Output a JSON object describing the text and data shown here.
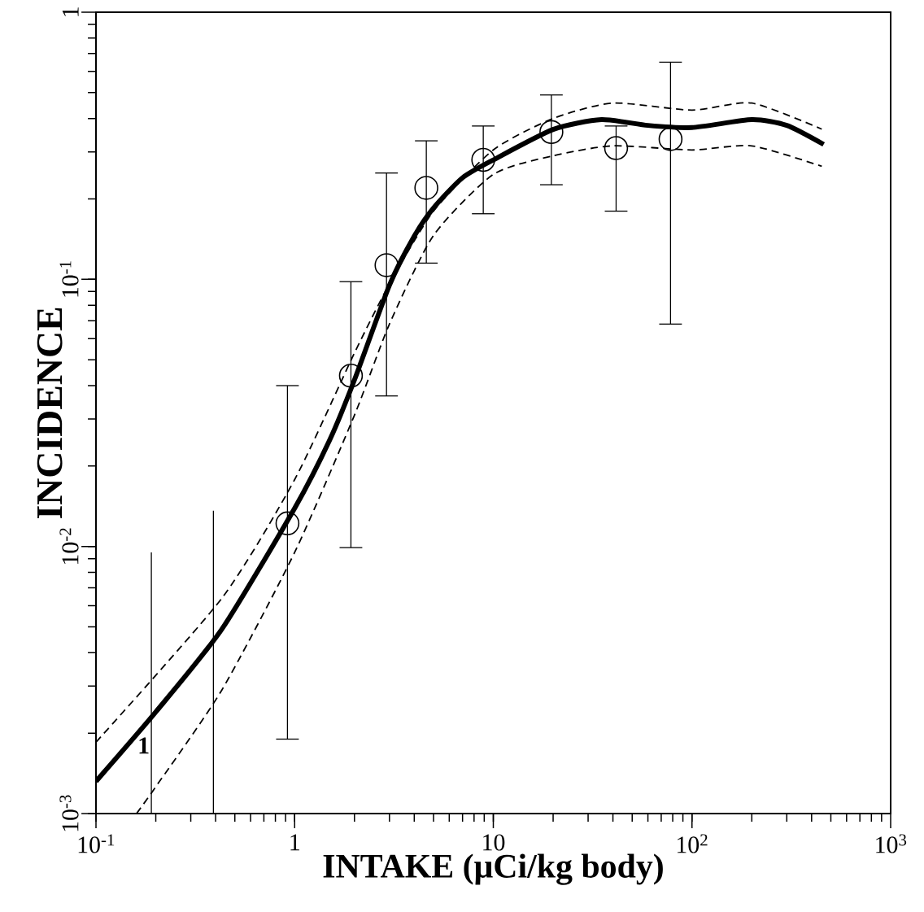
{
  "chart_data": {
    "type": "scatter",
    "xlabel": "INTAKE (μCi/kg body)",
    "ylabel": "INCIDENCE",
    "log": "xy",
    "xlim": [
      0.1,
      1000
    ],
    "ylim": [
      0.001,
      1
    ],
    "xticks": [
      {
        "value": 0.1,
        "label": "10$^{-1}$"
      },
      1,
      10,
      {
        "value": 100,
        "label": "10$^{2}$"
      },
      {
        "value": 1000,
        "label": "10$^{3}$"
      }
    ],
    "yticks": [
      {
        "value": 0.001,
        "label": "10$^{-3}$"
      },
      {
        "value": 0.01,
        "label": "10$^{-2}$"
      },
      {
        "value": 0.1,
        "label": "10$^{-1}$"
      },
      1
    ],
    "annotations": [
      "1"
    ],
    "series": [
      {
        "type": "line",
        "color": "#000000",
        "line_style": "solid",
        "x": [
          0.19,
          0.19
        ],
        "values": [
          0.001,
          0.0095
        ]
      },
      {
        "type": "line",
        "color": "#000000",
        "line_style": "solid",
        "x": [
          0.39,
          0.39
        ],
        "values": [
          0.001,
          0.0136
        ]
      },
      {
        "type": "scatter",
        "color": "#000000",
        "marker": "circle",
        "x": [
          0.92,
          1.92,
          2.9,
          4.6,
          8.9,
          19.6,
          41.5,
          78
        ],
        "values": [
          0.0122,
          0.0436,
          0.113,
          0.22,
          0.28,
          0.356,
          0.31,
          0.335
        ],
        "errors": [
          [
            0.0019,
            0.04
          ],
          [
            0.0099,
            0.098
          ],
          [
            0.0366,
            0.25
          ],
          [
            0.115,
            0.33
          ],
          [
            0.176,
            0.375
          ],
          [
            0.226,
            0.49
          ],
          [
            0.18,
            0.375
          ],
          [
            0.068,
            0.65
          ]
        ]
      },
      {
        "type": "line",
        "color": "#000000",
        "line_style": "solid",
        "x": [
          0.1,
          0.2,
          0.43,
          1,
          1.5,
          2,
          3,
          4,
          5,
          7,
          10,
          20,
          35,
          60,
          100,
          200,
          300,
          460
        ],
        "values": [
          0.00132,
          0.0024,
          0.0049,
          0.0139,
          0.025,
          0.042,
          0.095,
          0.145,
          0.185,
          0.24,
          0.28,
          0.364,
          0.396,
          0.377,
          0.37,
          0.396,
          0.377,
          0.32
        ]
      },
      {
        "type": "line",
        "color": "#000000",
        "line_style": "dashed",
        "x": [
          0.1,
          0.43,
          1,
          2,
          3,
          5,
          10,
          20,
          40,
          100,
          200,
          450
        ],
        "values": [
          0.00185,
          0.0064,
          0.0178,
          0.053,
          0.096,
          0.18,
          0.305,
          0.4,
          0.457,
          0.43,
          0.457,
          0.365
        ]
      },
      {
        "type": "line",
        "color": "#000000",
        "line_style": "dashed",
        "x": [
          0.16,
          0.2,
          0.43,
          1,
          2,
          3,
          5,
          10,
          20,
          40,
          100,
          200,
          450
        ],
        "values": [
          0.001,
          0.00126,
          0.0029,
          0.0095,
          0.031,
          0.068,
          0.146,
          0.247,
          0.29,
          0.316,
          0.305,
          0.316,
          0.265
        ]
      }
    ]
  }
}
